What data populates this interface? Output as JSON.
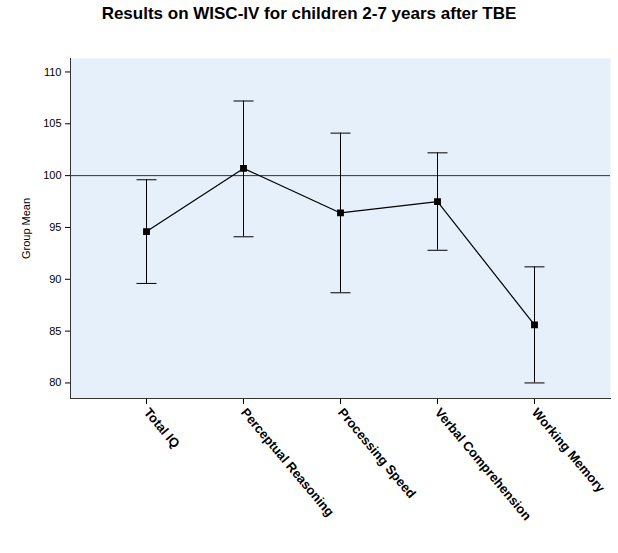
{
  "chart_data": {
    "type": "line",
    "title": "Results on WISC-IV for children 2-7 years after TBE",
    "y_label": "Group Mean",
    "categories": [
      "Total IQ",
      "Perceptual Reasoning",
      "Processing Speed",
      "Verbal Comprehension",
      "Working Memory"
    ],
    "values": [
      94.6,
      100.7,
      96.4,
      97.5,
      85.6
    ],
    "error_low": [
      89.6,
      94.1,
      88.7,
      92.8,
      80.0
    ],
    "error_high": [
      99.6,
      107.2,
      104.1,
      102.2,
      91.2
    ],
    "reference_line": 100,
    "color": "#000000",
    "marker": "square",
    "ylim": [
      78.5,
      111.3
    ],
    "yticks": [
      80,
      85,
      90,
      95,
      100,
      105,
      110
    ],
    "grid": false
  }
}
